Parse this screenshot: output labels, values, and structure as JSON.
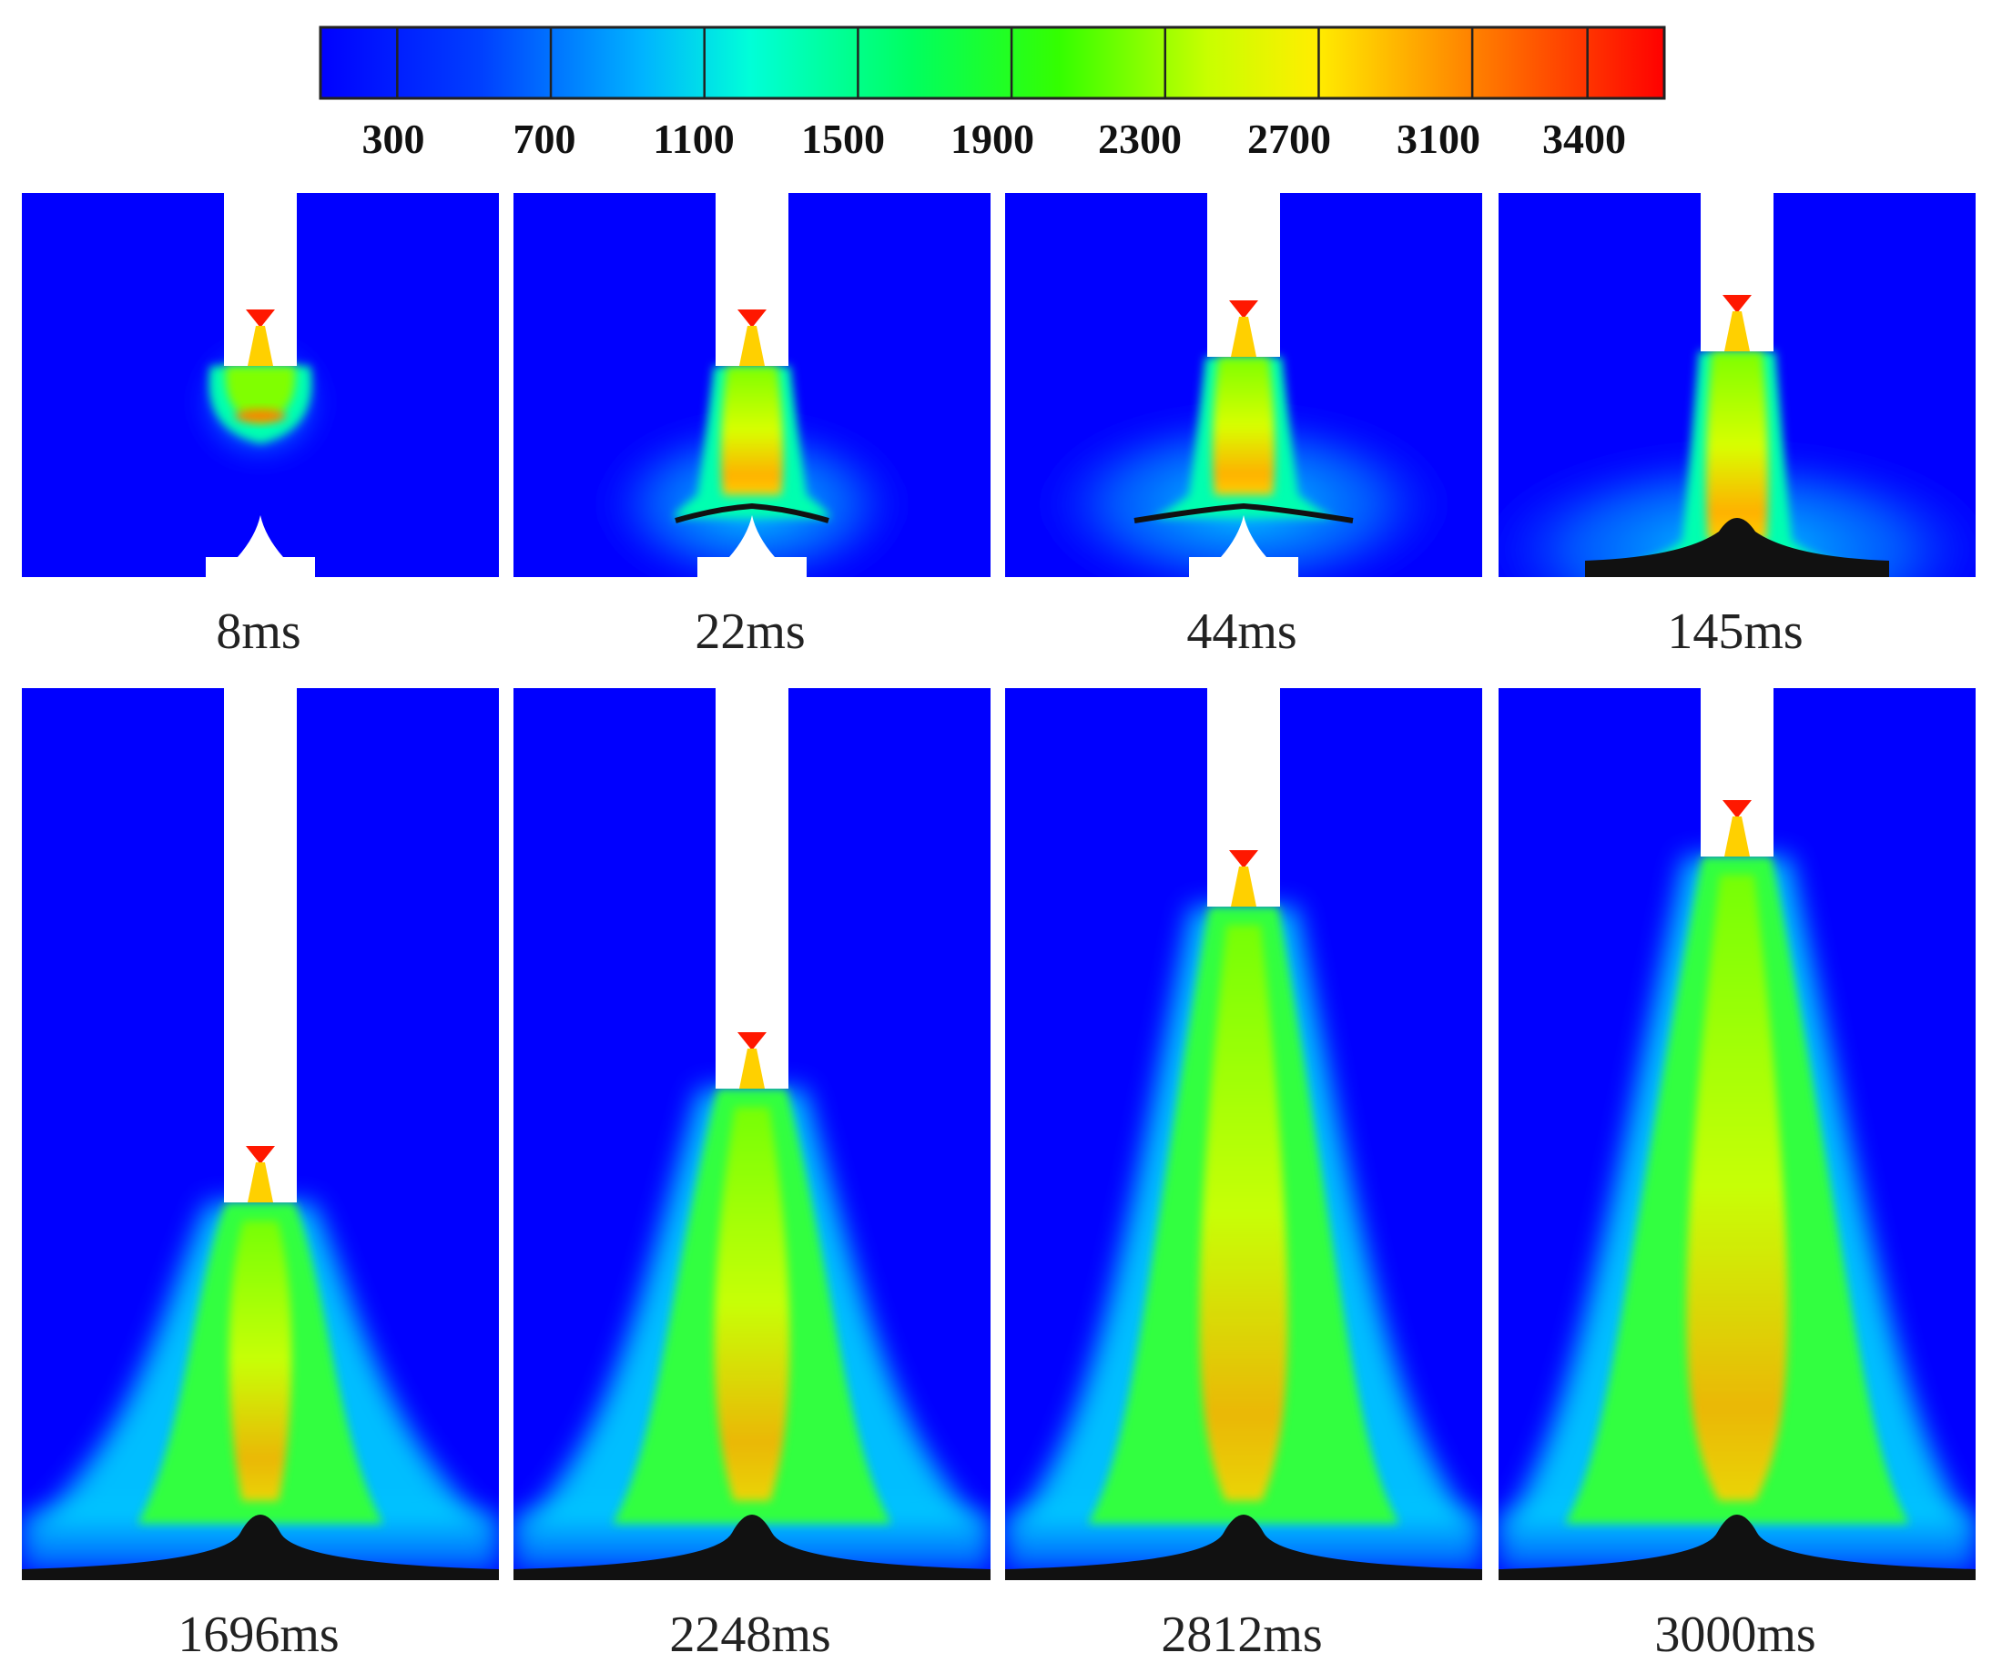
{
  "colorbar": {
    "ticks": [
      "300",
      "700",
      "1100",
      "1500",
      "1900",
      "2300",
      "2700",
      "3100",
      "3400"
    ],
    "range": [
      100,
      3600
    ],
    "stops": [
      {
        "offset": 0.0,
        "color": "#0000ff"
      },
      {
        "offset": 0.12,
        "color": "#0040ff"
      },
      {
        "offset": 0.24,
        "color": "#00b4ff"
      },
      {
        "offset": 0.32,
        "color": "#00ffd8"
      },
      {
        "offset": 0.44,
        "color": "#00ff60"
      },
      {
        "offset": 0.55,
        "color": "#34ff00"
      },
      {
        "offset": 0.66,
        "color": "#c8ff00"
      },
      {
        "offset": 0.74,
        "color": "#ffee00"
      },
      {
        "offset": 0.85,
        "color": "#ff8800"
      },
      {
        "offset": 1.0,
        "color": "#ff0000"
      }
    ]
  },
  "panels": [
    {
      "label": "8ms"
    },
    {
      "label": "22ms"
    },
    {
      "label": "44ms"
    },
    {
      "label": "145ms"
    },
    {
      "label": "1696ms"
    },
    {
      "label": "2248ms"
    },
    {
      "label": "2812ms"
    },
    {
      "label": "3000ms"
    }
  ]
}
